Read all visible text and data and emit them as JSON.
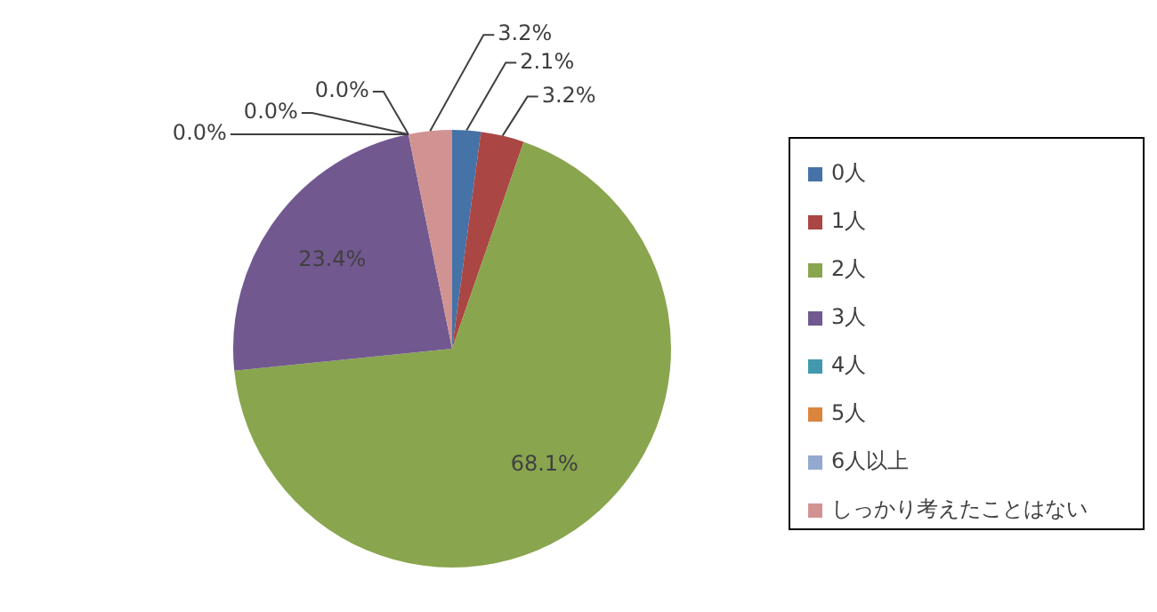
{
  "chart_data": {
    "type": "pie",
    "categories": [
      "0人",
      "1人",
      "2人",
      "3人",
      "4人",
      "5人",
      "6人以上",
      "しっかり考えたことはない"
    ],
    "values": [
      2.1,
      3.2,
      68.1,
      23.4,
      0.0,
      0.0,
      0.0,
      3.2
    ],
    "colors": [
      "#4572a7",
      "#aa4643",
      "#89a54e",
      "#71588f",
      "#4198af",
      "#db843d",
      "#93a9cf",
      "#d19392"
    ],
    "value_labels": [
      "2.1%",
      "3.2%",
      "68.1%",
      "23.4%",
      "0.0%",
      "0.0%",
      "0.0%",
      "3.2%"
    ],
    "legend": "right"
  }
}
